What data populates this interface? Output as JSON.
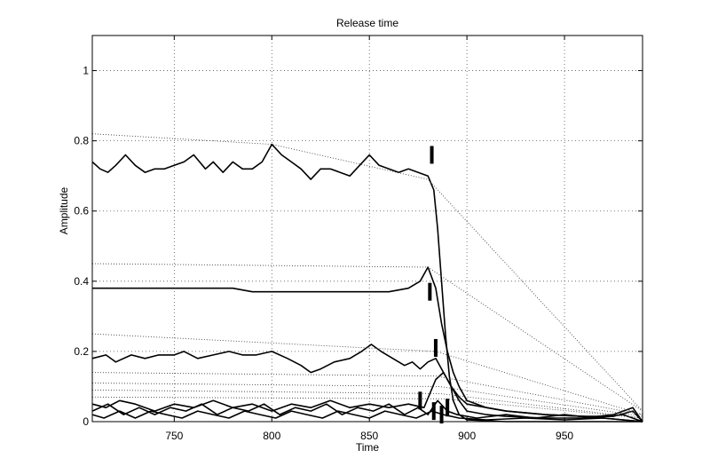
{
  "chart_data": {
    "type": "line",
    "title": "Release time",
    "xlabel": "Time",
    "ylabel": "Amplitude",
    "xlim": [
      708,
      990
    ],
    "ylim": [
      0,
      1.1
    ],
    "xticks": [
      750,
      800,
      850,
      900,
      950
    ],
    "yticks": [
      0,
      0.2,
      0.4,
      0.6,
      0.8,
      1
    ],
    "ytick_labels": [
      "0",
      "0.2",
      "0.4",
      "0.6",
      "0.8",
      "1"
    ],
    "grid": true,
    "series": [
      {
        "style": "solid",
        "points": [
          [
            708,
            0.74
          ],
          [
            712,
            0.72
          ],
          [
            716,
            0.71
          ],
          [
            720,
            0.73
          ],
          [
            725,
            0.76
          ],
          [
            730,
            0.73
          ],
          [
            735,
            0.71
          ],
          [
            740,
            0.72
          ],
          [
            745,
            0.72
          ],
          [
            750,
            0.73
          ],
          [
            755,
            0.74
          ],
          [
            760,
            0.76
          ],
          [
            763,
            0.74
          ],
          [
            766,
            0.72
          ],
          [
            770,
            0.74
          ],
          [
            775,
            0.71
          ],
          [
            780,
            0.74
          ],
          [
            785,
            0.72
          ],
          [
            790,
            0.72
          ],
          [
            795,
            0.74
          ],
          [
            800,
            0.79
          ],
          [
            805,
            0.76
          ],
          [
            810,
            0.74
          ],
          [
            815,
            0.72
          ],
          [
            820,
            0.69
          ],
          [
            825,
            0.72
          ],
          [
            830,
            0.72
          ],
          [
            835,
            0.71
          ],
          [
            840,
            0.7
          ],
          [
            845,
            0.73
          ],
          [
            850,
            0.76
          ],
          [
            855,
            0.73
          ],
          [
            860,
            0.72
          ],
          [
            865,
            0.71
          ],
          [
            870,
            0.72
          ],
          [
            875,
            0.71
          ],
          [
            880,
            0.7
          ],
          [
            883,
            0.66
          ],
          [
            885,
            0.55
          ],
          [
            887,
            0.4
          ],
          [
            889,
            0.25
          ],
          [
            891,
            0.13
          ],
          [
            893,
            0.06
          ],
          [
            896,
            0.02
          ],
          [
            900,
            0.005
          ],
          [
            920,
            0.0
          ],
          [
            990,
            0.0
          ]
        ]
      },
      {
        "style": "solid",
        "points": [
          [
            708,
            0.38
          ],
          [
            720,
            0.38
          ],
          [
            730,
            0.38
          ],
          [
            740,
            0.38
          ],
          [
            750,
            0.38
          ],
          [
            760,
            0.38
          ],
          [
            770,
            0.38
          ],
          [
            780,
            0.38
          ],
          [
            790,
            0.37
          ],
          [
            800,
            0.37
          ],
          [
            810,
            0.37
          ],
          [
            820,
            0.37
          ],
          [
            830,
            0.37
          ],
          [
            840,
            0.37
          ],
          [
            850,
            0.37
          ],
          [
            860,
            0.37
          ],
          [
            870,
            0.38
          ],
          [
            876,
            0.4
          ],
          [
            880,
            0.44
          ],
          [
            884,
            0.38
          ],
          [
            887,
            0.28
          ],
          [
            890,
            0.2
          ],
          [
            893,
            0.14
          ],
          [
            896,
            0.1
          ],
          [
            900,
            0.06
          ],
          [
            910,
            0.04
          ],
          [
            920,
            0.03
          ],
          [
            940,
            0.02
          ],
          [
            960,
            0.015
          ],
          [
            975,
            0.015
          ],
          [
            985,
            0.03
          ],
          [
            990,
            0.0
          ]
        ]
      },
      {
        "style": "solid",
        "points": [
          [
            708,
            0.18
          ],
          [
            715,
            0.19
          ],
          [
            720,
            0.17
          ],
          [
            728,
            0.19
          ],
          [
            735,
            0.18
          ],
          [
            742,
            0.19
          ],
          [
            750,
            0.19
          ],
          [
            755,
            0.2
          ],
          [
            762,
            0.18
          ],
          [
            770,
            0.19
          ],
          [
            778,
            0.2
          ],
          [
            785,
            0.19
          ],
          [
            792,
            0.19
          ],
          [
            800,
            0.2
          ],
          [
            808,
            0.18
          ],
          [
            815,
            0.16
          ],
          [
            820,
            0.14
          ],
          [
            825,
            0.15
          ],
          [
            832,
            0.17
          ],
          [
            840,
            0.18
          ],
          [
            846,
            0.2
          ],
          [
            851,
            0.22
          ],
          [
            856,
            0.2
          ],
          [
            862,
            0.18
          ],
          [
            868,
            0.16
          ],
          [
            872,
            0.17
          ],
          [
            876,
            0.15
          ],
          [
            880,
            0.17
          ],
          [
            884,
            0.18
          ],
          [
            888,
            0.14
          ],
          [
            892,
            0.1
          ],
          [
            896,
            0.07
          ],
          [
            900,
            0.05
          ],
          [
            910,
            0.04
          ],
          [
            920,
            0.03
          ],
          [
            940,
            0.02
          ],
          [
            960,
            0.015
          ],
          [
            990,
            0.0
          ]
        ]
      },
      {
        "style": "solid",
        "points": [
          [
            708,
            0.05
          ],
          [
            715,
            0.04
          ],
          [
            722,
            0.06
          ],
          [
            730,
            0.05
          ],
          [
            740,
            0.03
          ],
          [
            750,
            0.05
          ],
          [
            760,
            0.04
          ],
          [
            770,
            0.06
          ],
          [
            780,
            0.04
          ],
          [
            790,
            0.05
          ],
          [
            800,
            0.03
          ],
          [
            810,
            0.05
          ],
          [
            820,
            0.04
          ],
          [
            830,
            0.06
          ],
          [
            840,
            0.04
          ],
          [
            850,
            0.05
          ],
          [
            860,
            0.04
          ],
          [
            870,
            0.05
          ],
          [
            878,
            0.04
          ],
          [
            884,
            0.12
          ],
          [
            888,
            0.14
          ],
          [
            892,
            0.1
          ],
          [
            896,
            0.06
          ],
          [
            900,
            0.03
          ],
          [
            910,
            0.02
          ],
          [
            920,
            0.015
          ],
          [
            940,
            0.01
          ],
          [
            960,
            0.01
          ],
          [
            975,
            0.02
          ],
          [
            985,
            0.04
          ],
          [
            990,
            0.0
          ]
        ]
      },
      {
        "style": "solid",
        "points": [
          [
            708,
            0.03
          ],
          [
            716,
            0.05
          ],
          [
            724,
            0.02
          ],
          [
            732,
            0.04
          ],
          [
            740,
            0.02
          ],
          [
            748,
            0.04
          ],
          [
            756,
            0.03
          ],
          [
            764,
            0.05
          ],
          [
            772,
            0.02
          ],
          [
            780,
            0.04
          ],
          [
            788,
            0.03
          ],
          [
            796,
            0.05
          ],
          [
            804,
            0.02
          ],
          [
            812,
            0.04
          ],
          [
            820,
            0.03
          ],
          [
            828,
            0.05
          ],
          [
            836,
            0.02
          ],
          [
            844,
            0.04
          ],
          [
            852,
            0.03
          ],
          [
            860,
            0.05
          ],
          [
            868,
            0.02
          ],
          [
            875,
            0.04
          ],
          [
            880,
            0.02
          ],
          [
            885,
            0.06
          ],
          [
            890,
            0.03
          ],
          [
            895,
            0.02
          ],
          [
            905,
            0.01
          ],
          [
            920,
            0.02
          ],
          [
            935,
            0.01
          ],
          [
            950,
            0.02
          ],
          [
            965,
            0.01
          ],
          [
            980,
            0.02
          ],
          [
            990,
            0.0
          ]
        ]
      },
      {
        "style": "solid",
        "points": [
          [
            708,
            0.02
          ],
          [
            714,
            0.01
          ],
          [
            722,
            0.03
          ],
          [
            730,
            0.01
          ],
          [
            738,
            0.03
          ],
          [
            746,
            0.02
          ],
          [
            754,
            0.01
          ],
          [
            762,
            0.03
          ],
          [
            770,
            0.02
          ],
          [
            778,
            0.01
          ],
          [
            786,
            0.03
          ],
          [
            794,
            0.02
          ],
          [
            802,
            0.01
          ],
          [
            810,
            0.03
          ],
          [
            818,
            0.02
          ],
          [
            826,
            0.01
          ],
          [
            834,
            0.03
          ],
          [
            842,
            0.02
          ],
          [
            850,
            0.01
          ],
          [
            858,
            0.03
          ],
          [
            866,
            0.02
          ],
          [
            874,
            0.01
          ],
          [
            882,
            0.03
          ],
          [
            888,
            0.02
          ],
          [
            896,
            0.01
          ],
          [
            910,
            0.005
          ],
          [
            930,
            0.01
          ],
          [
            950,
            0.005
          ],
          [
            970,
            0.01
          ],
          [
            990,
            0.0
          ]
        ]
      },
      {
        "style": "dotted",
        "points": [
          [
            708,
            0.82
          ],
          [
            800,
            0.79
          ],
          [
            880,
            0.69
          ],
          [
            990,
            0.03
          ]
        ]
      },
      {
        "style": "dotted",
        "points": [
          [
            708,
            0.45
          ],
          [
            880,
            0.44
          ],
          [
            990,
            0.03
          ]
        ]
      },
      {
        "style": "dotted",
        "points": [
          [
            708,
            0.25
          ],
          [
            884,
            0.2
          ],
          [
            990,
            0.02
          ]
        ]
      },
      {
        "style": "dotted",
        "points": [
          [
            708,
            0.14
          ],
          [
            884,
            0.13
          ],
          [
            990,
            0.02
          ]
        ]
      },
      {
        "style": "dotted",
        "points": [
          [
            708,
            0.11
          ],
          [
            886,
            0.1
          ],
          [
            990,
            0.015
          ]
        ]
      },
      {
        "style": "dotted",
        "points": [
          [
            708,
            0.09
          ],
          [
            886,
            0.08
          ],
          [
            990,
            0.01
          ]
        ]
      },
      {
        "style": "dotted",
        "points": [
          [
            708,
            0.07
          ],
          [
            888,
            0.065
          ],
          [
            990,
            0.01
          ]
        ]
      }
    ],
    "markers": [
      {
        "x": 882,
        "y": 0.76
      },
      {
        "x": 881,
        "y": 0.37
      },
      {
        "x": 884,
        "y": 0.21
      },
      {
        "x": 876,
        "y": 0.06
      },
      {
        "x": 883,
        "y": 0.03
      },
      {
        "x": 887,
        "y": 0.02
      },
      {
        "x": 890,
        "y": 0.04
      }
    ]
  }
}
